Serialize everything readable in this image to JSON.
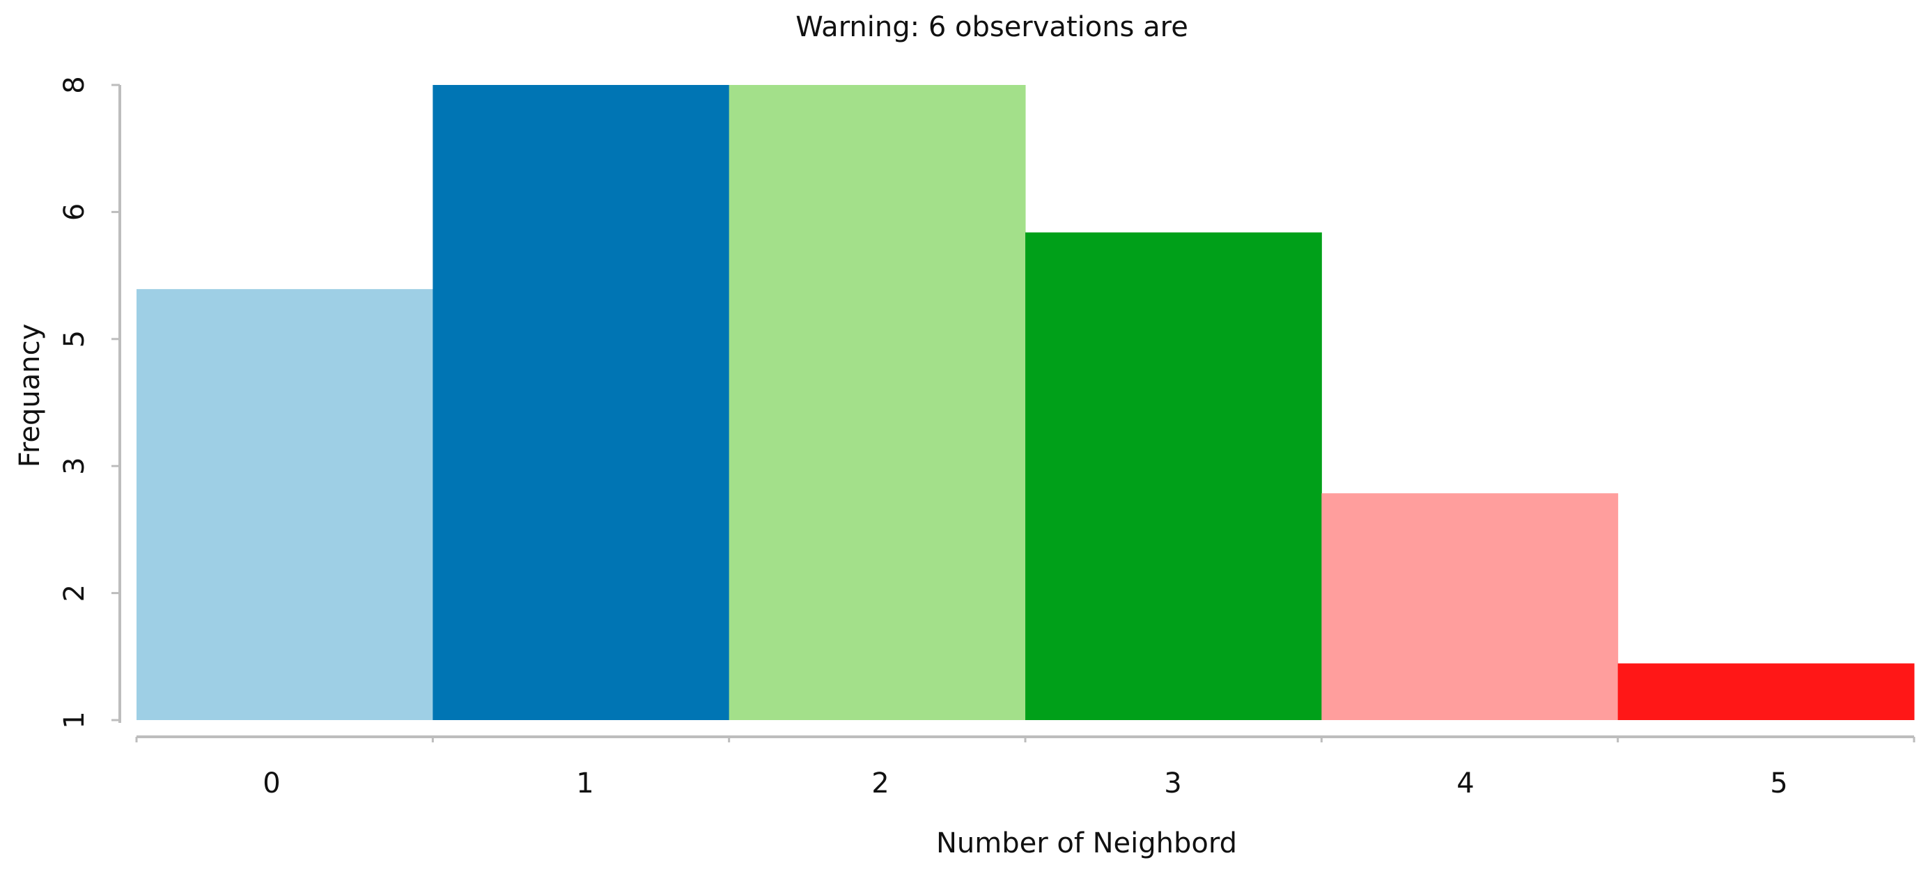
{
  "chart_data": {
    "type": "bar",
    "title": "Warning: 6 observations are",
    "xlabel": "Number of Neighbord",
    "ylabel": "Frequancy",
    "categories": [
      "0",
      "1",
      "2",
      "3",
      "4",
      "5"
    ],
    "values": [
      5.75,
      8,
      8,
      6.375,
      3.5,
      1.625
    ],
    "yticks": [
      "1",
      "2",
      "3",
      "5",
      "6",
      "8"
    ],
    "ylim": [
      1,
      8
    ],
    "grid": false,
    "legend": "none",
    "colors": [
      "#9ecfe5",
      "#0075b4",
      "#a3e08a",
      "#00a019",
      "#ff9e9d",
      "#ff1717"
    ],
    "axis_color": "#bdbdbd"
  }
}
